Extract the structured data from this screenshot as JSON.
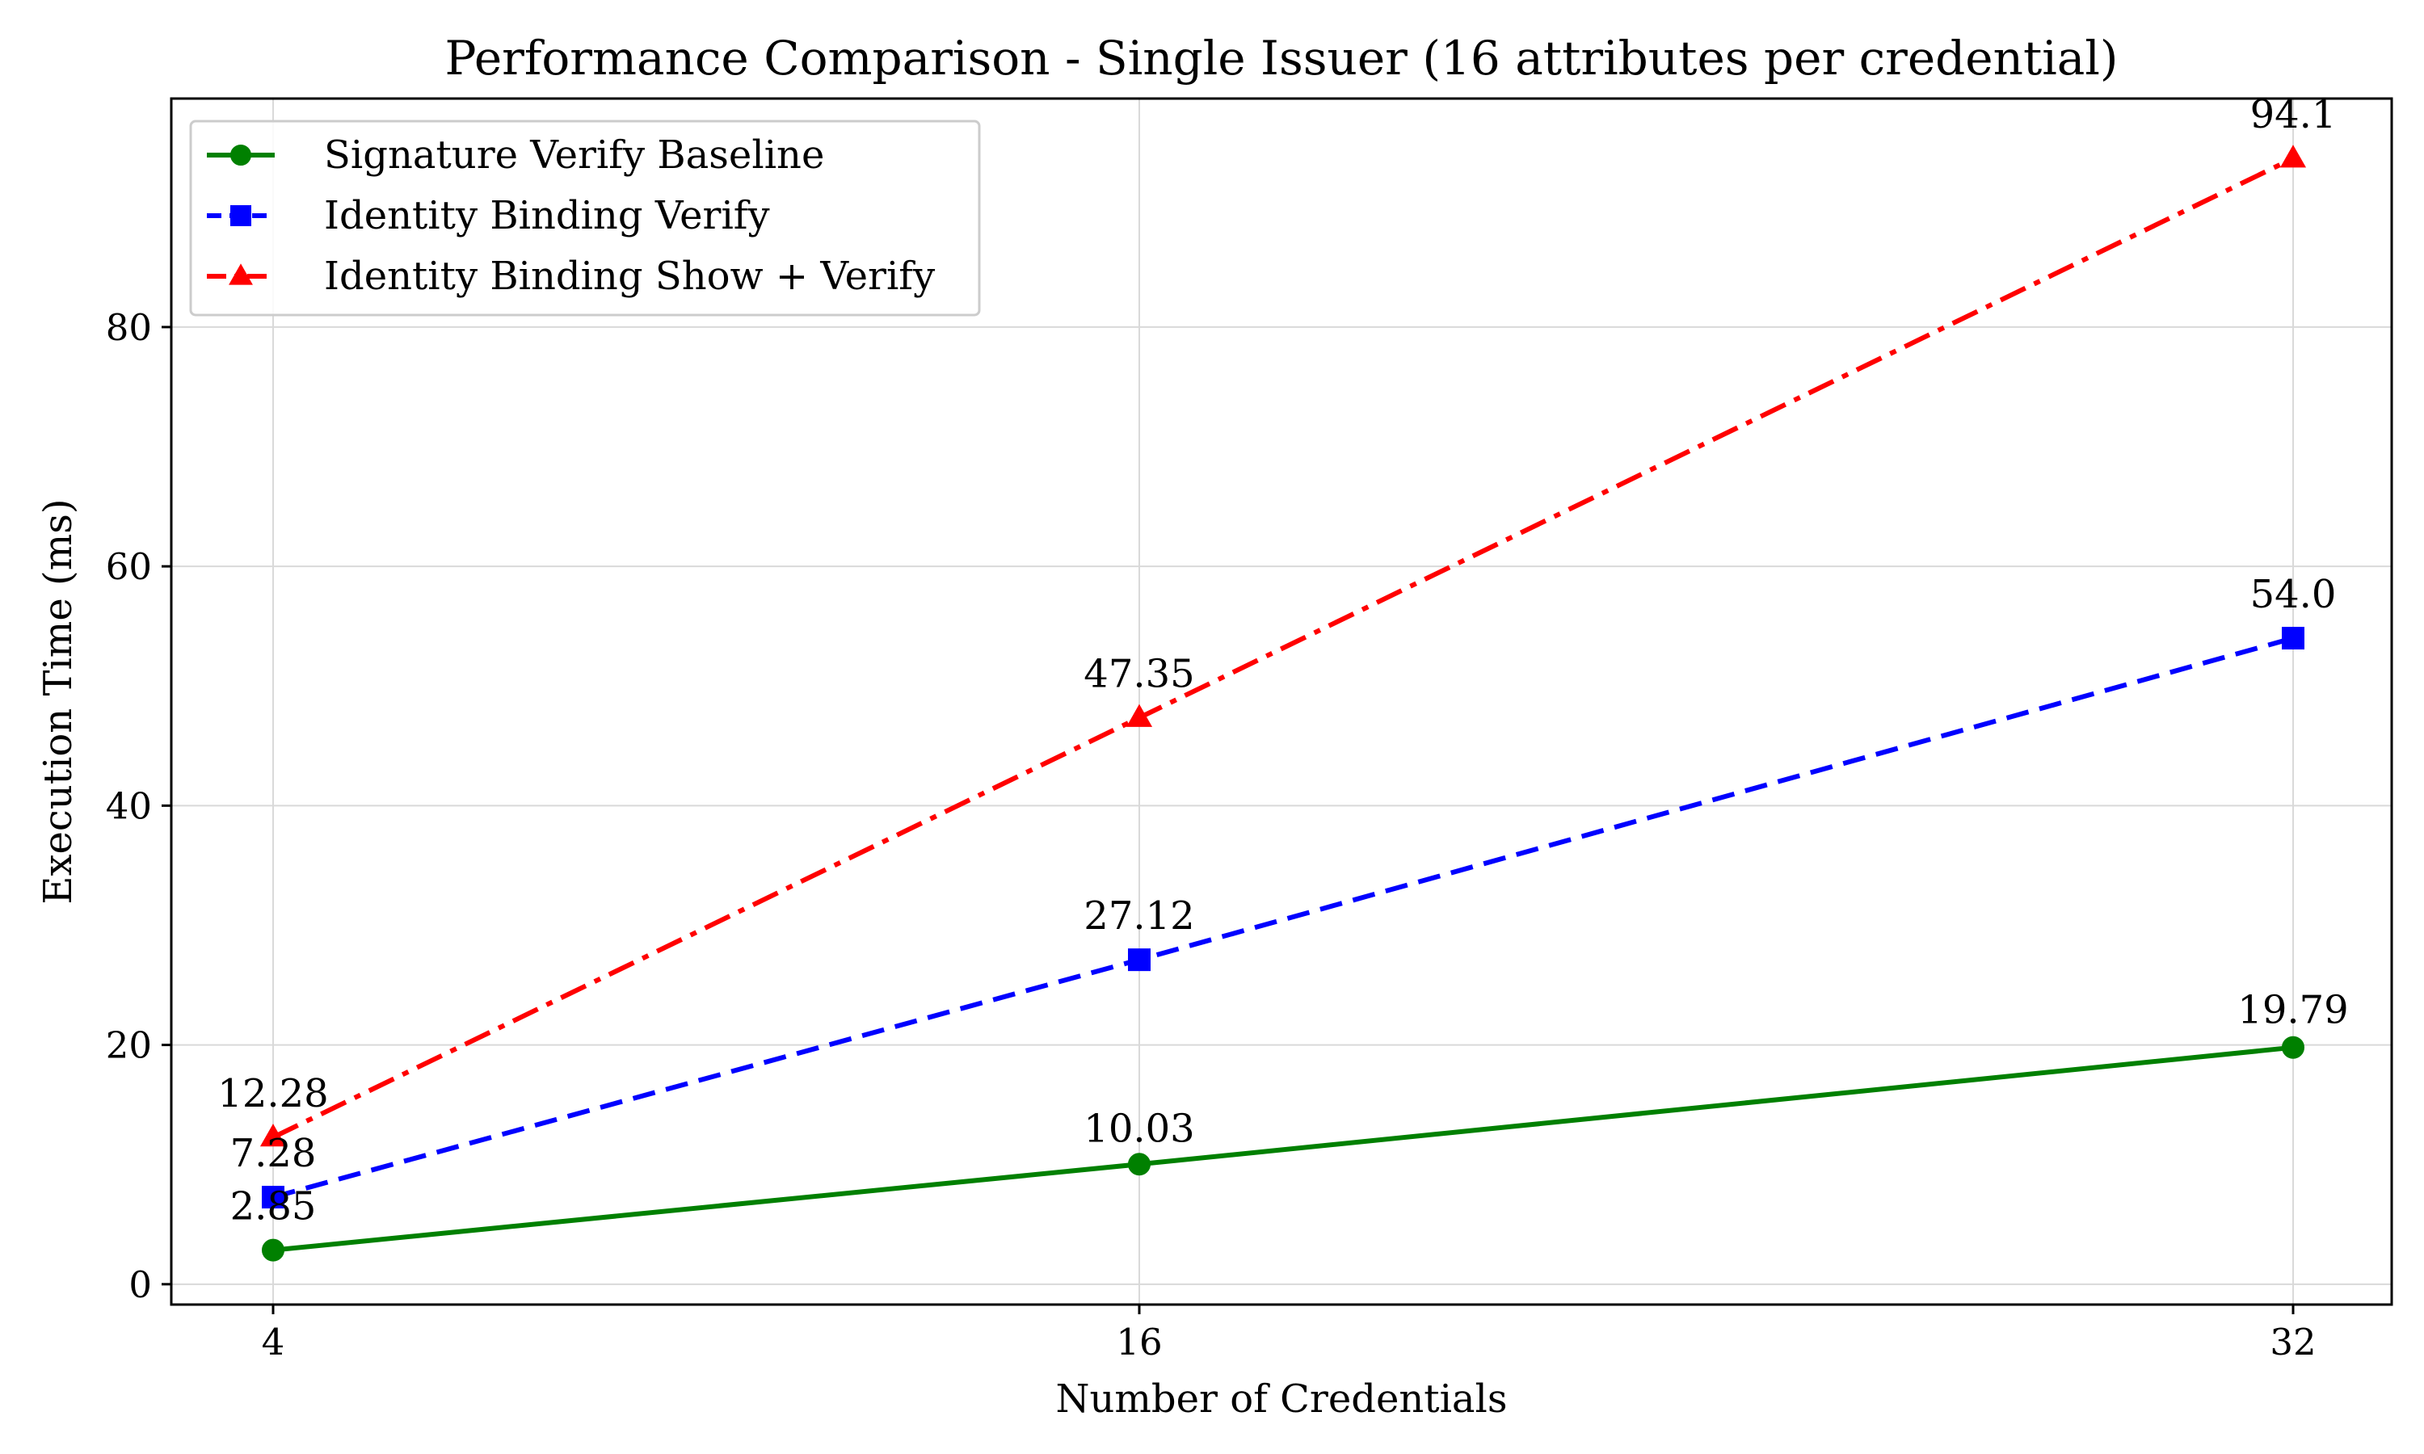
{
  "chart_data": {
    "type": "line",
    "title": "Performance Comparison - Single Issuer (16 attributes per credential)",
    "xlabel": "Number of Credentials",
    "ylabel": "Execution Time (ms)",
    "x": [
      4,
      16,
      32
    ],
    "x_tick_labels": [
      "4",
      "16",
      "32"
    ],
    "x_scale": "categorical-positioned",
    "ylim": [
      -1.7,
      99.1
    ],
    "y_ticks": [
      0,
      20,
      40,
      60,
      80
    ],
    "y_tick_labels": [
      "0",
      "20",
      "40",
      "60",
      "80"
    ],
    "grid": true,
    "legend_position": "upper-left",
    "series": [
      {
        "name": "Signature Verify Baseline",
        "values": [
          2.85,
          10.03,
          19.79
        ],
        "labels": [
          "2.85",
          "10.03",
          "19.79"
        ],
        "color": "#008000",
        "line_style": "solid",
        "marker": "circle"
      },
      {
        "name": "Identity Binding Verify",
        "values": [
          7.28,
          27.12,
          54.0
        ],
        "labels": [
          "7.28",
          "27.12",
          "54.0"
        ],
        "color": "#0000ff",
        "line_style": "dashed",
        "marker": "square"
      },
      {
        "name": "Identity Binding Show + Verify",
        "values": [
          12.28,
          47.35,
          94.1
        ],
        "labels": [
          "12.28",
          "47.35",
          "94.1"
        ],
        "color": "#ff0000",
        "line_style": "dash-dot",
        "marker": "triangle"
      }
    ]
  }
}
